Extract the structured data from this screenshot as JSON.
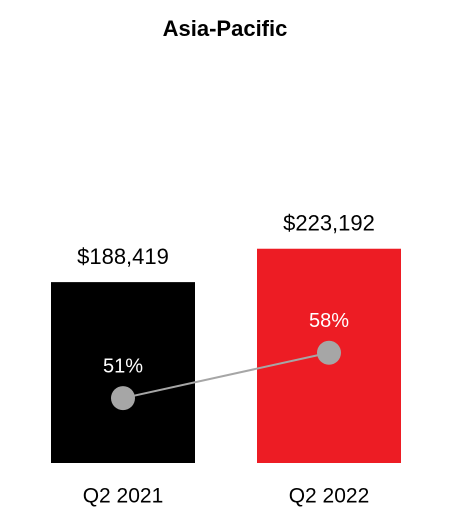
{
  "chart_data": {
    "type": "bar",
    "title": "Asia-Pacific",
    "categories": [
      "Q2 2021",
      "Q2 2022"
    ],
    "series": [
      {
        "type": "bar",
        "colors": [
          "#000000",
          "#ed1c24"
        ],
        "values": [
          188419,
          223192
        ],
        "value_labels": [
          "$188,419",
          "$223,192"
        ]
      },
      {
        "type": "line",
        "axis": "y2",
        "color": "#a6a6a6",
        "values": [
          51,
          58
        ],
        "value_labels": [
          "51%",
          "58%"
        ]
      }
    ],
    "ylim": [
      0,
      250000
    ],
    "y2lim": [
      41,
      78
    ]
  }
}
